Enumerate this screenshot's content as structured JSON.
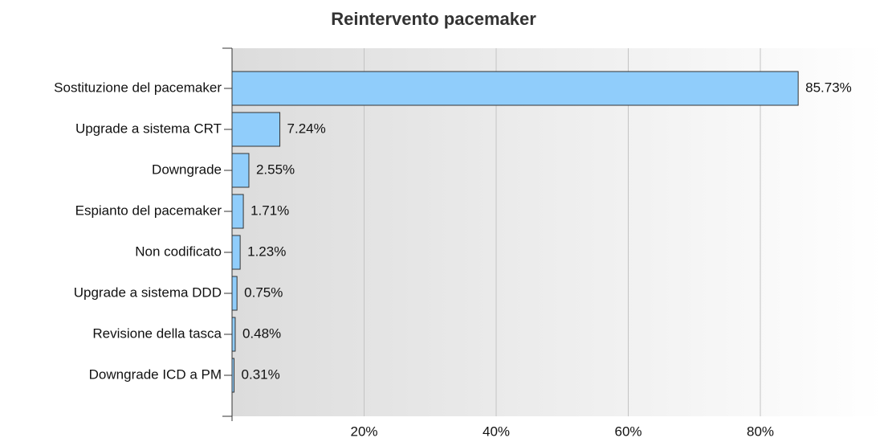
{
  "chart_data": {
    "type": "bar",
    "orientation": "horizontal",
    "title": "Reintervento pacemaker",
    "categories": [
      "Sostituzione del pacemaker",
      "Upgrade a sistema CRT",
      "Downgrade",
      "Espianto del pacemaker",
      "Non codificato",
      "Upgrade a sistema DDD",
      "Revisione della tasca",
      "Downgrade ICD a PM"
    ],
    "values": [
      85.73,
      7.24,
      2.55,
      1.71,
      1.23,
      0.75,
      0.48,
      0.31
    ],
    "value_labels": [
      "85.73%",
      "7.24%",
      "2.55%",
      "1.71%",
      "1.23%",
      "0.75%",
      "0.48%",
      "0.31%"
    ],
    "color": "#90cdfb",
    "xlim": [
      0,
      98.6
    ],
    "xticks": [
      {
        "value": 20,
        "label": "20%"
      },
      {
        "value": 40,
        "label": "40%"
      },
      {
        "value": 60,
        "label": "60%"
      },
      {
        "value": 80,
        "label": "80%"
      }
    ],
    "grid": true
  }
}
